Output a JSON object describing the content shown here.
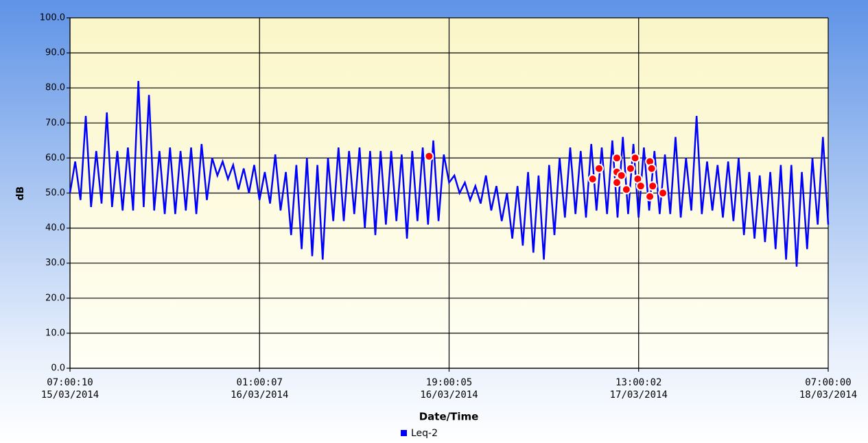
{
  "chart_data": {
    "type": "line",
    "xlabel": "Date/Time",
    "ylabel": "dB",
    "xlim": [
      "2014-03-15T07:00:10",
      "2014-03-18T07:00:00"
    ],
    "xticks": [
      {
        "value": "2014-03-15T07:00:10",
        "label": "07:00:10\n15/03/2014"
      },
      {
        "value": "2014-03-16T01:00:07",
        "label": "01:00:07\n16/03/2014"
      },
      {
        "value": "2014-03-16T19:00:05",
        "label": "19:00:05\n16/03/2014"
      },
      {
        "value": "2014-03-17T13:00:02",
        "label": "13:00:02\n17/03/2014"
      },
      {
        "value": "2014-03-18T07:00:00",
        "label": "07:00:00\n18/03/2014"
      }
    ],
    "ylim": [
      0,
      100
    ],
    "yticks": [
      {
        "value": 0,
        "label": "0.0"
      },
      {
        "value": 10,
        "label": "10.0"
      },
      {
        "value": 20,
        "label": "20.0"
      },
      {
        "value": 30,
        "label": "30.0"
      },
      {
        "value": 40,
        "label": "40.0"
      },
      {
        "value": 50,
        "label": "50.0"
      },
      {
        "value": 60,
        "label": "60.0"
      },
      {
        "value": 70,
        "label": "70.0"
      },
      {
        "value": 80,
        "label": "80.0"
      },
      {
        "value": 90,
        "label": "90.0"
      },
      {
        "value": 100,
        "label": "100.0"
      }
    ],
    "grid": true,
    "legend": "bottom",
    "series": [
      {
        "name": "Leq-2",
        "color": "#0000ff",
        "x": [
          "2014-03-15T07:00:10",
          "2014-03-15T07:30",
          "2014-03-15T08:00",
          "2014-03-15T08:30",
          "2014-03-15T09:00",
          "2014-03-15T09:30",
          "2014-03-15T10:00",
          "2014-03-15T10:30",
          "2014-03-15T11:00",
          "2014-03-15T11:30",
          "2014-03-15T12:00",
          "2014-03-15T12:30",
          "2014-03-15T13:00",
          "2014-03-15T13:30",
          "2014-03-15T14:00",
          "2014-03-15T14:30",
          "2014-03-15T15:00",
          "2014-03-15T15:30",
          "2014-03-15T16:00",
          "2014-03-15T16:30",
          "2014-03-15T17:00",
          "2014-03-15T17:30",
          "2014-03-15T18:00",
          "2014-03-15T18:30",
          "2014-03-15T19:00",
          "2014-03-15T19:30",
          "2014-03-15T20:00",
          "2014-03-15T20:30",
          "2014-03-15T21:00",
          "2014-03-15T21:30",
          "2014-03-15T22:00",
          "2014-03-15T22:30",
          "2014-03-15T23:00",
          "2014-03-15T23:30",
          "2014-03-16T00:00",
          "2014-03-16T00:30",
          "2014-03-16T01:00",
          "2014-03-16T01:30",
          "2014-03-16T02:00",
          "2014-03-16T02:30",
          "2014-03-16T03:00",
          "2014-03-16T03:30",
          "2014-03-16T04:00",
          "2014-03-16T04:30",
          "2014-03-16T05:00",
          "2014-03-16T05:30",
          "2014-03-16T06:00",
          "2014-03-16T06:30",
          "2014-03-16T07:00",
          "2014-03-16T07:30",
          "2014-03-16T08:00",
          "2014-03-16T08:30",
          "2014-03-16T09:00",
          "2014-03-16T09:30",
          "2014-03-16T10:00",
          "2014-03-16T10:30",
          "2014-03-16T11:00",
          "2014-03-16T11:30",
          "2014-03-16T12:00",
          "2014-03-16T12:30",
          "2014-03-16T13:00",
          "2014-03-16T13:30",
          "2014-03-16T14:00",
          "2014-03-16T14:30",
          "2014-03-16T15:00",
          "2014-03-16T15:30",
          "2014-03-16T16:00",
          "2014-03-16T16:30",
          "2014-03-16T17:00",
          "2014-03-16T17:30",
          "2014-03-16T18:00",
          "2014-03-16T18:30",
          "2014-03-16T19:00",
          "2014-03-16T19:30",
          "2014-03-16T20:00",
          "2014-03-16T20:30",
          "2014-03-16T21:00",
          "2014-03-16T21:30",
          "2014-03-16T22:00",
          "2014-03-16T22:30",
          "2014-03-16T23:00",
          "2014-03-16T23:30",
          "2014-03-17T00:00",
          "2014-03-17T00:30",
          "2014-03-17T01:00",
          "2014-03-17T01:30",
          "2014-03-17T02:00",
          "2014-03-17T02:30",
          "2014-03-17T03:00",
          "2014-03-17T03:30",
          "2014-03-17T04:00",
          "2014-03-17T04:30",
          "2014-03-17T05:00",
          "2014-03-17T05:30",
          "2014-03-17T06:00",
          "2014-03-17T06:30",
          "2014-03-17T07:00",
          "2014-03-17T07:30",
          "2014-03-17T08:00",
          "2014-03-17T08:30",
          "2014-03-17T09:00",
          "2014-03-17T09:30",
          "2014-03-17T10:00",
          "2014-03-17T10:30",
          "2014-03-17T11:00",
          "2014-03-17T11:30",
          "2014-03-17T12:00",
          "2014-03-17T12:30",
          "2014-03-17T13:00",
          "2014-03-17T13:30",
          "2014-03-17T14:00",
          "2014-03-17T14:30",
          "2014-03-17T15:00",
          "2014-03-17T15:30",
          "2014-03-17T16:00",
          "2014-03-17T16:30",
          "2014-03-17T17:00",
          "2014-03-17T17:30",
          "2014-03-17T18:00",
          "2014-03-17T18:30",
          "2014-03-17T19:00",
          "2014-03-17T19:30",
          "2014-03-17T20:00",
          "2014-03-17T20:30",
          "2014-03-17T21:00",
          "2014-03-17T21:30",
          "2014-03-17T22:00",
          "2014-03-17T22:30",
          "2014-03-17T23:00",
          "2014-03-17T23:30",
          "2014-03-18T00:00",
          "2014-03-18T00:30",
          "2014-03-18T01:00",
          "2014-03-18T01:30",
          "2014-03-18T02:00",
          "2014-03-18T02:30",
          "2014-03-18T03:00",
          "2014-03-18T03:30",
          "2014-03-18T04:00",
          "2014-03-18T04:30",
          "2014-03-18T05:00",
          "2014-03-18T05:30",
          "2014-03-18T06:00",
          "2014-03-18T06:30",
          "2014-03-18T07:00"
        ],
        "values": [
          50,
          59,
          48,
          72,
          46,
          62,
          47,
          73,
          46,
          62,
          45,
          63,
          45,
          82,
          46,
          78,
          45,
          62,
          44,
          63,
          44,
          62,
          45,
          63,
          44,
          64,
          48,
          60,
          55,
          59,
          54,
          58,
          51,
          57,
          50,
          58,
          48,
          56,
          47,
          61,
          45,
          56,
          38,
          58,
          34,
          60,
          32,
          58,
          31,
          60,
          42,
          63,
          42,
          62,
          44,
          63,
          40,
          62,
          38,
          62,
          41,
          62,
          42,
          61,
          37,
          62,
          42,
          63,
          41,
          65,
          42,
          61,
          53,
          55,
          50,
          53,
          48,
          52,
          47,
          55,
          45,
          52,
          42,
          50,
          37,
          52,
          35,
          56,
          33,
          55,
          31,
          58,
          38,
          60,
          43,
          63,
          44,
          62,
          43,
          64,
          45,
          63,
          44,
          65,
          43,
          66,
          44,
          64,
          43,
          63,
          45,
          62,
          44,
          61,
          44,
          66,
          43,
          60,
          45,
          72,
          44,
          59,
          45,
          58,
          43,
          59,
          42,
          60,
          38,
          56,
          37,
          55,
          36,
          56,
          34,
          58,
          31,
          58,
          29,
          56,
          34,
          60,
          41,
          66,
          41
        ]
      },
      {
        "color": "#ff0000",
        "marker": "circle",
        "x": [
          "2014-03-16T17:06",
          "2014-03-17T08:38",
          "2014-03-17T09:14",
          "2014-03-17T10:56",
          "2014-03-17T10:56",
          "2014-03-17T10:56",
          "2014-03-17T11:22",
          "2014-03-17T11:50",
          "2014-03-17T12:14",
          "2014-03-17T12:40",
          "2014-03-17T12:55",
          "2014-03-17T13:12",
          "2014-03-17T14:04",
          "2014-03-17T14:14",
          "2014-03-17T14:04",
          "2014-03-17T14:20",
          "2014-03-17T15:18"
        ],
        "values": [
          60.5,
          54,
          57,
          60,
          56,
          53,
          55,
          51,
          57,
          60,
          54,
          52,
          59,
          57,
          49,
          52,
          50
        ]
      }
    ]
  }
}
